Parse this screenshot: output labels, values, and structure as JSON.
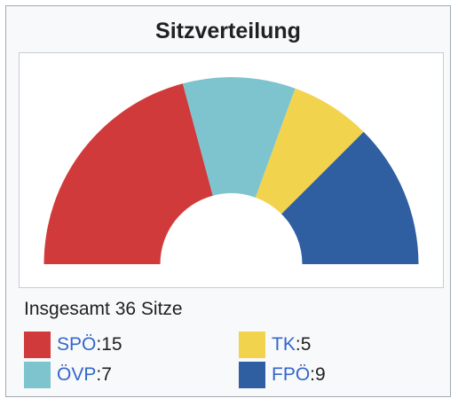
{
  "title": "Sitzverteilung",
  "total_label": "Insgesamt 36 Sitze",
  "chart_data": {
    "type": "pie",
    "title": "Sitzverteilung",
    "total_seats": 36,
    "series": [
      {
        "name": "SPÖ",
        "value": 15,
        "color": "#d13a3a"
      },
      {
        "name": "ÖVP",
        "value": 7,
        "color": "#7ec4cf"
      },
      {
        "name": "TK",
        "value": 5,
        "color": "#f2d34e"
      },
      {
        "name": "FPÖ",
        "value": 9,
        "color": "#2f5ea1"
      }
    ]
  },
  "legend": [
    {
      "party": "SPÖ",
      "sep": ":",
      "seats": " 15",
      "color": "#d13a3a"
    },
    {
      "party": "TK",
      "sep": ":",
      "seats": " 5",
      "color": "#f2d34e"
    },
    {
      "party": "ÖVP",
      "sep": ":",
      "seats": " 7",
      "color": "#7ec4cf"
    },
    {
      "party": "FPÖ",
      "sep": ":",
      "seats": " 9",
      "color": "#2f5ea1"
    }
  ]
}
